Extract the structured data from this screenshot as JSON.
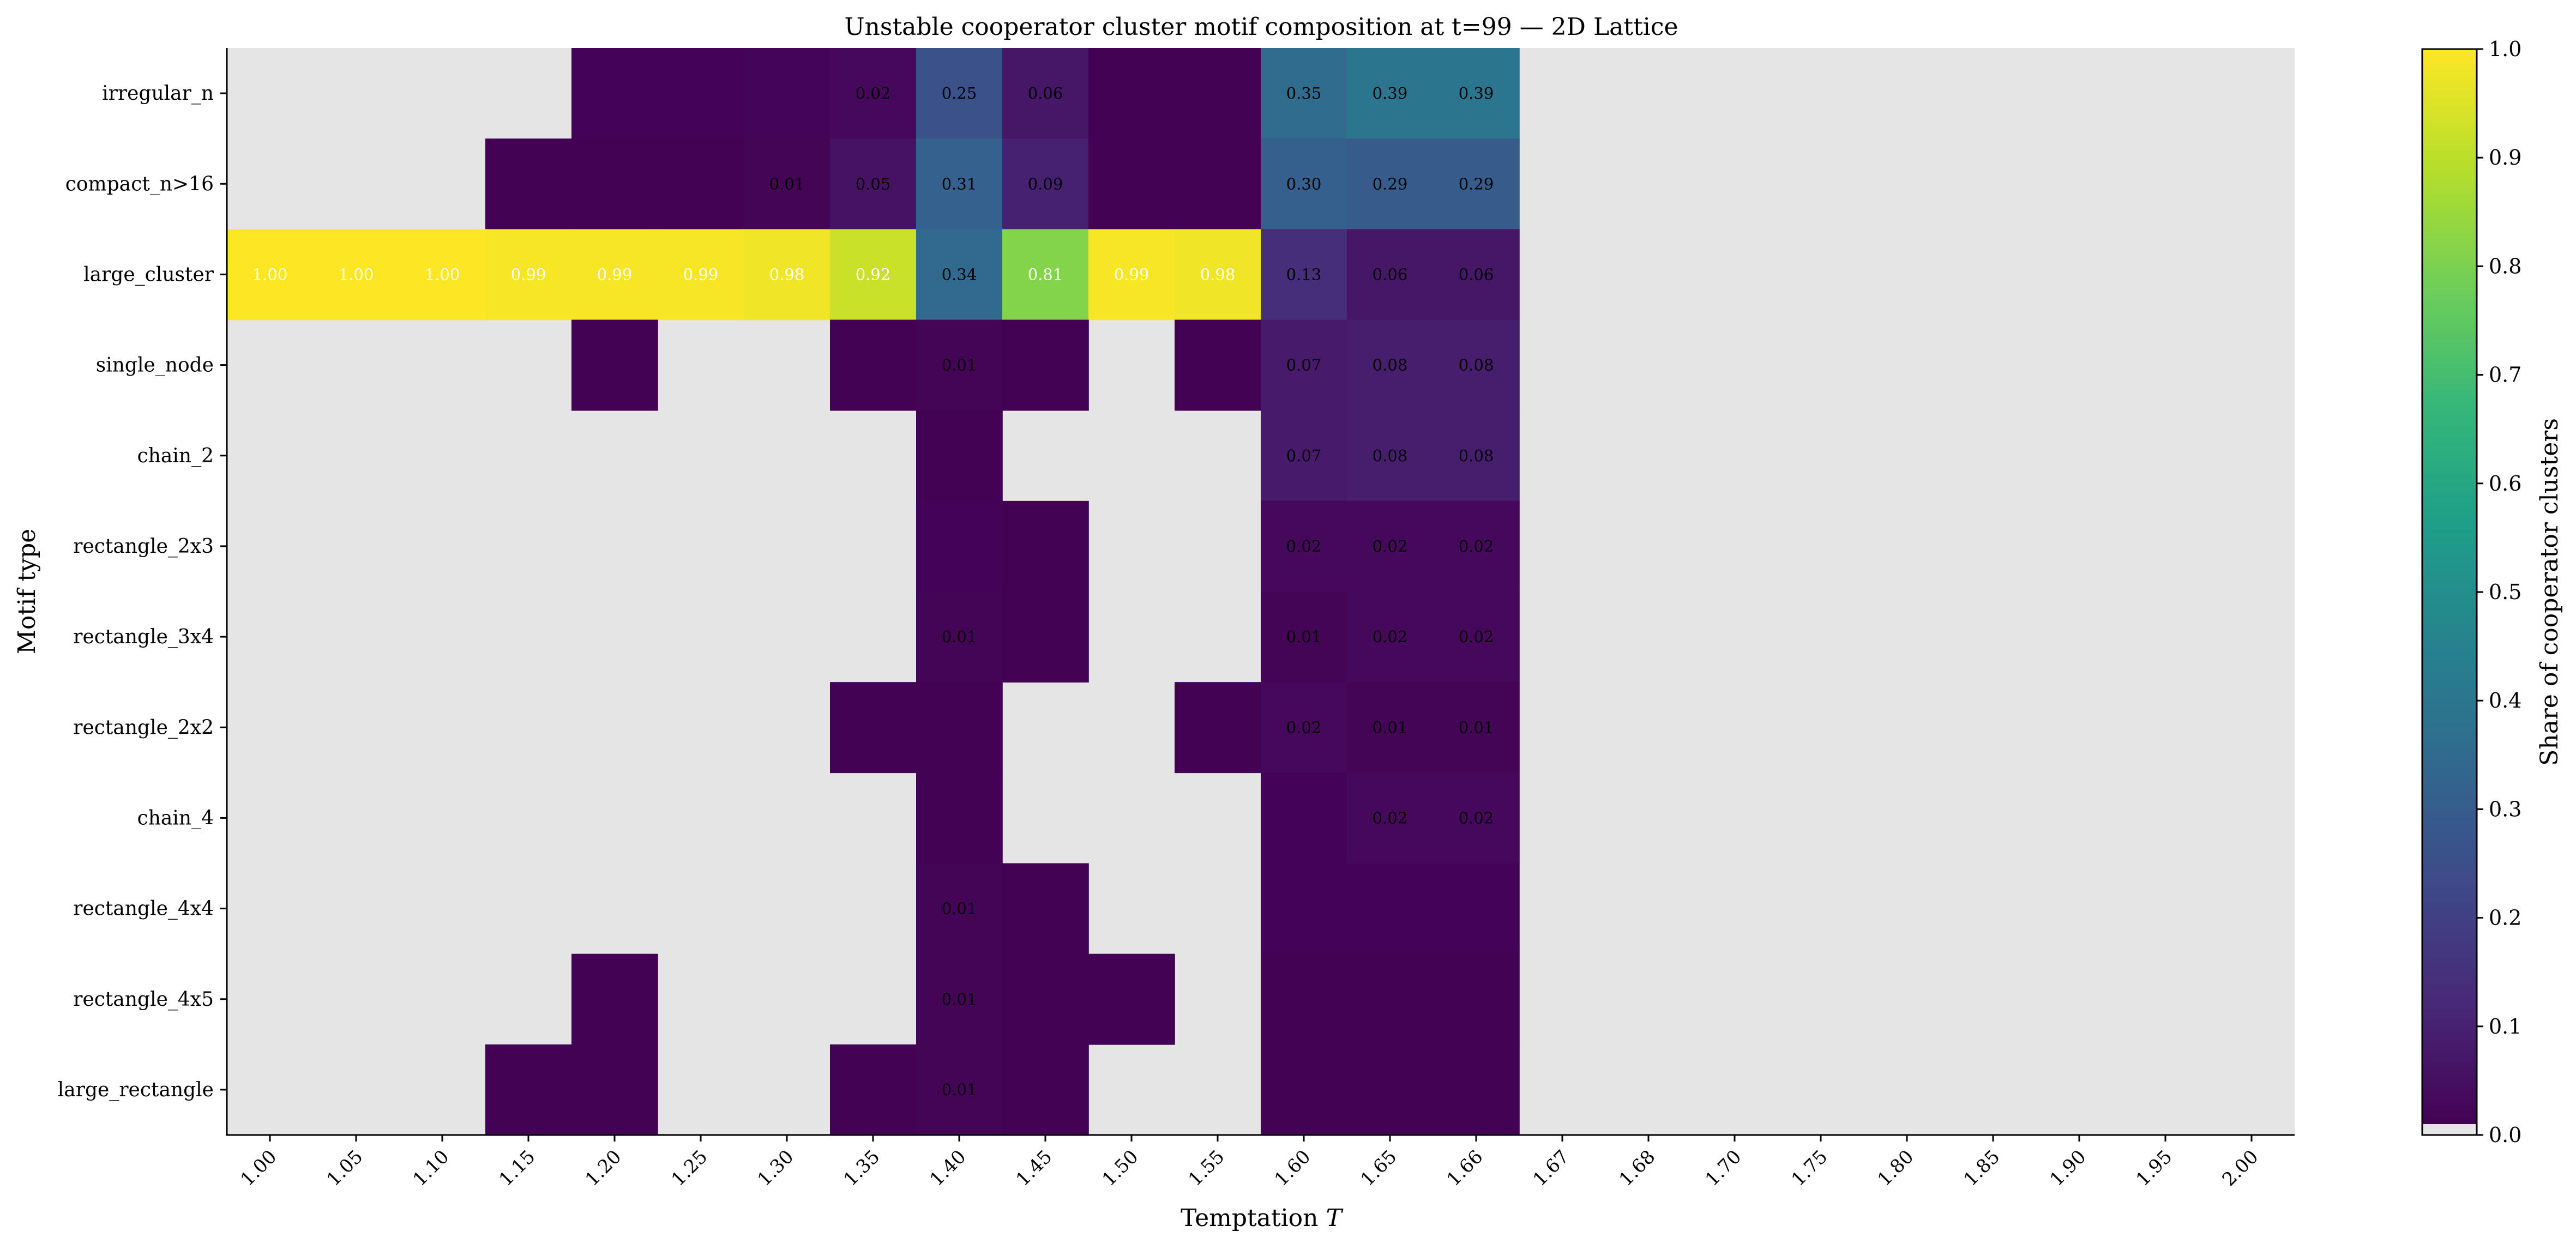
{
  "chart_data": {
    "type": "heatmap",
    "title": "Unstable cooperator cluster motif composition at t=99 — 2D Lattice",
    "xlabel_text": "Temptation ",
    "xlabel_var": "T",
    "ylabel": "Motif type",
    "colorbar_label": "Share of cooperator clusters",
    "colorscale": "viridis",
    "missing_color": "#e5e5e5",
    "vlim": [
      0,
      1
    ],
    "colorbar_ticks": [
      "0.0",
      "0.1",
      "0.2",
      "0.3",
      "0.4",
      "0.5",
      "0.6",
      "0.7",
      "0.8",
      "0.9",
      "1.0"
    ],
    "x": [
      "1.00",
      "1.05",
      "1.10",
      "1.15",
      "1.20",
      "1.25",
      "1.30",
      "1.35",
      "1.40",
      "1.45",
      "1.50",
      "1.55",
      "1.60",
      "1.65",
      "1.66",
      "1.67",
      "1.68",
      "1.70",
      "1.75",
      "1.80",
      "1.85",
      "1.90",
      "1.95",
      "2.00"
    ],
    "y": [
      "irregular_n",
      "compact_n>16",
      "large_cluster",
      "single_node",
      "chain_2",
      "rectangle_2x3",
      "rectangle_3x4",
      "rectangle_2x2",
      "chain_4",
      "rectangle_4x4",
      "rectangle_4x5",
      "large_rectangle"
    ],
    "values": [
      [
        null,
        null,
        null,
        null,
        0.005,
        0.005,
        0.008,
        0.02,
        0.25,
        0.06,
        0.004,
        0.004,
        0.35,
        0.39,
        0.39,
        null,
        null,
        null,
        null,
        null,
        null,
        null,
        null,
        null
      ],
      [
        null,
        null,
        null,
        0.004,
        0.004,
        0.004,
        0.01,
        0.05,
        0.31,
        0.09,
        0.004,
        0.004,
        0.3,
        0.29,
        0.29,
        null,
        null,
        null,
        null,
        null,
        null,
        null,
        null,
        null
      ],
      [
        1.0,
        1.0,
        1.0,
        0.99,
        0.99,
        0.99,
        0.98,
        0.92,
        0.34,
        0.81,
        0.99,
        0.98,
        0.13,
        0.06,
        0.06,
        null,
        null,
        null,
        null,
        null,
        null,
        null,
        null,
        null
      ],
      [
        null,
        null,
        null,
        null,
        0.004,
        null,
        null,
        0.004,
        0.01,
        0.004,
        null,
        0.004,
        0.07,
        0.08,
        0.08,
        null,
        null,
        null,
        null,
        null,
        null,
        null,
        null,
        null
      ],
      [
        null,
        null,
        null,
        null,
        null,
        null,
        null,
        null,
        0.004,
        null,
        null,
        null,
        0.07,
        0.08,
        0.08,
        null,
        null,
        null,
        null,
        null,
        null,
        null,
        null,
        null
      ],
      [
        null,
        null,
        null,
        null,
        null,
        null,
        null,
        null,
        0.006,
        0.004,
        null,
        null,
        0.02,
        0.02,
        0.02,
        null,
        null,
        null,
        null,
        null,
        null,
        null,
        null,
        null
      ],
      [
        null,
        null,
        null,
        null,
        null,
        null,
        null,
        null,
        0.01,
        0.004,
        null,
        null,
        0.01,
        0.02,
        0.02,
        null,
        null,
        null,
        null,
        null,
        null,
        null,
        null,
        null
      ],
      [
        null,
        null,
        null,
        null,
        null,
        null,
        null,
        0.004,
        0.004,
        null,
        null,
        0.004,
        0.02,
        0.01,
        0.01,
        null,
        null,
        null,
        null,
        null,
        null,
        null,
        null,
        null
      ],
      [
        null,
        null,
        null,
        null,
        null,
        null,
        null,
        null,
        0.004,
        null,
        null,
        null,
        0.006,
        0.02,
        0.02,
        null,
        null,
        null,
        null,
        null,
        null,
        null,
        null,
        null
      ],
      [
        null,
        null,
        null,
        null,
        null,
        null,
        null,
        null,
        0.01,
        0.004,
        null,
        null,
        0.005,
        0.005,
        0.005,
        null,
        null,
        null,
        null,
        null,
        null,
        null,
        null,
        null
      ],
      [
        null,
        null,
        null,
        null,
        0.004,
        null,
        null,
        null,
        0.01,
        0.004,
        0.004,
        null,
        0.004,
        0.004,
        0.004,
        null,
        null,
        null,
        null,
        null,
        null,
        null,
        null,
        null
      ],
      [
        null,
        null,
        null,
        0.004,
        0.004,
        null,
        null,
        0.004,
        0.01,
        0.004,
        null,
        null,
        0.004,
        0.004,
        0.004,
        null,
        null,
        null,
        null,
        null,
        null,
        null,
        null,
        null
      ]
    ],
    "cell_labels": [
      [
        "",
        "",
        "",
        "",
        "",
        "",
        "",
        "0.02",
        "0.25",
        "0.06",
        "",
        "",
        "0.35",
        "0.39",
        "0.39",
        "",
        "",
        "",
        "",
        "",
        "",
        "",
        "",
        ""
      ],
      [
        "",
        "",
        "",
        "",
        "",
        "",
        "0.01",
        "0.05",
        "0.31",
        "0.09",
        "",
        "",
        "0.30",
        "0.29",
        "0.29",
        "",
        "",
        "",
        "",
        "",
        "",
        "",
        "",
        ""
      ],
      [
        "1.00",
        "1.00",
        "1.00",
        "0.99",
        "0.99",
        "0.99",
        "0.98",
        "0.92",
        "0.34",
        "0.81",
        "0.99",
        "0.98",
        "0.13",
        "0.06",
        "0.06",
        "",
        "",
        "",
        "",
        "",
        "",
        "",
        "",
        ""
      ],
      [
        "",
        "",
        "",
        "",
        "",
        "",
        "",
        "",
        "0.01",
        "",
        "",
        "",
        "0.07",
        "0.08",
        "0.08",
        "",
        "",
        "",
        "",
        "",
        "",
        "",
        "",
        ""
      ],
      [
        "",
        "",
        "",
        "",
        "",
        "",
        "",
        "",
        "",
        "",
        "",
        "",
        "0.07",
        "0.08",
        "0.08",
        "",
        "",
        "",
        "",
        "",
        "",
        "",
        "",
        ""
      ],
      [
        "",
        "",
        "",
        "",
        "",
        "",
        "",
        "",
        "",
        "",
        "",
        "",
        "0.02",
        "0.02",
        "0.02",
        "",
        "",
        "",
        "",
        "",
        "",
        "",
        "",
        ""
      ],
      [
        "",
        "",
        "",
        "",
        "",
        "",
        "",
        "",
        "0.01",
        "",
        "",
        "",
        "0.01",
        "0.02",
        "0.02",
        "",
        "",
        "",
        "",
        "",
        "",
        "",
        "",
        ""
      ],
      [
        "",
        "",
        "",
        "",
        "",
        "",
        "",
        "",
        "",
        "",
        "",
        "",
        "0.02",
        "0.01",
        "0.01",
        "",
        "",
        "",
        "",
        "",
        "",
        "",
        "",
        ""
      ],
      [
        "",
        "",
        "",
        "",
        "",
        "",
        "",
        "",
        "",
        "",
        "",
        "",
        "",
        "0.02",
        "0.02",
        "",
        "",
        "",
        "",
        "",
        "",
        "",
        "",
        ""
      ],
      [
        "",
        "",
        "",
        "",
        "",
        "",
        "",
        "",
        "0.01",
        "",
        "",
        "",
        "",
        "",
        "",
        "",
        "",
        "",
        "",
        "",
        "",
        "",
        "",
        ""
      ],
      [
        "",
        "",
        "",
        "",
        "",
        "",
        "",
        "",
        "0.01",
        "",
        "",
        "",
        "",
        "",
        "",
        "",
        "",
        "",
        "",
        "",
        "",
        "",
        "",
        ""
      ],
      [
        "",
        "",
        "",
        "",
        "",
        "",
        "",
        "",
        "0.01",
        "",
        "",
        "",
        "",
        "",
        "",
        "",
        "",
        "",
        "",
        "",
        "",
        "",
        "",
        ""
      ]
    ]
  }
}
